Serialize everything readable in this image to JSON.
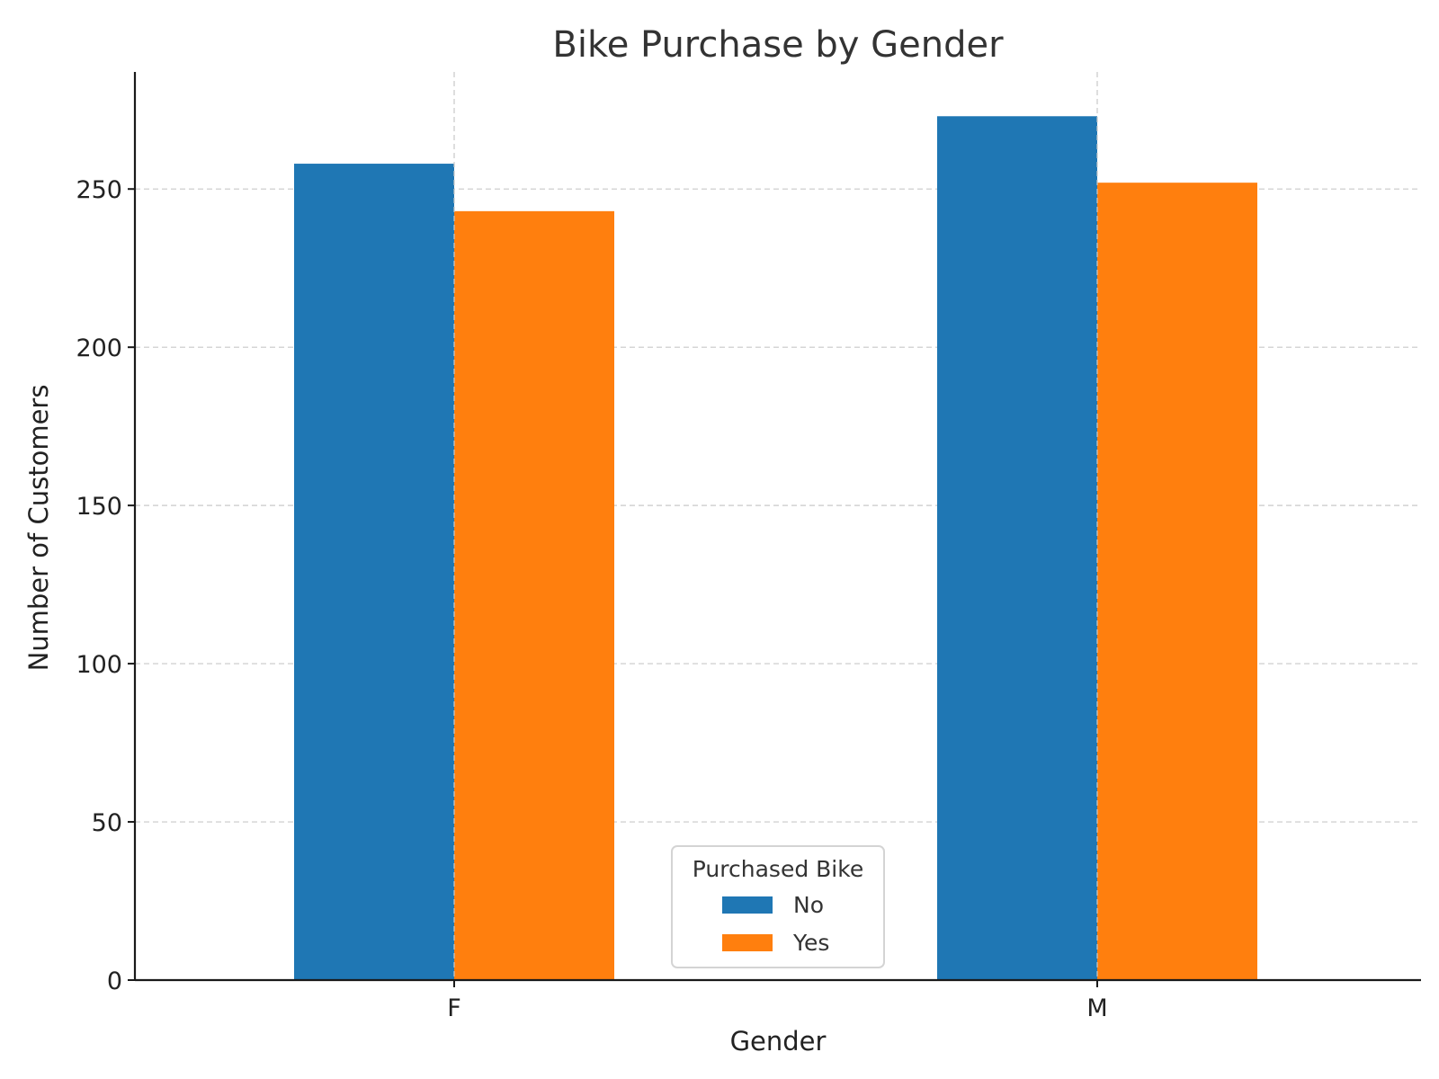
{
  "chart_data": {
    "type": "bar",
    "title": "Bike Purchase by Gender",
    "xlabel": "Gender",
    "ylabel": "Number of Customers",
    "categories": [
      "F",
      "M"
    ],
    "series": [
      {
        "name": "No",
        "values": [
          258,
          273
        ],
        "color": "#1f77b4"
      },
      {
        "name": "Yes",
        "values": [
          243,
          252
        ],
        "color": "#ff7f0e"
      }
    ],
    "ylim": [
      0,
      287
    ],
    "yticks": [
      0,
      50,
      100,
      150,
      200,
      250
    ],
    "grid": true,
    "legend": {
      "title": "Purchased Bike",
      "placement": "lower-center"
    }
  }
}
